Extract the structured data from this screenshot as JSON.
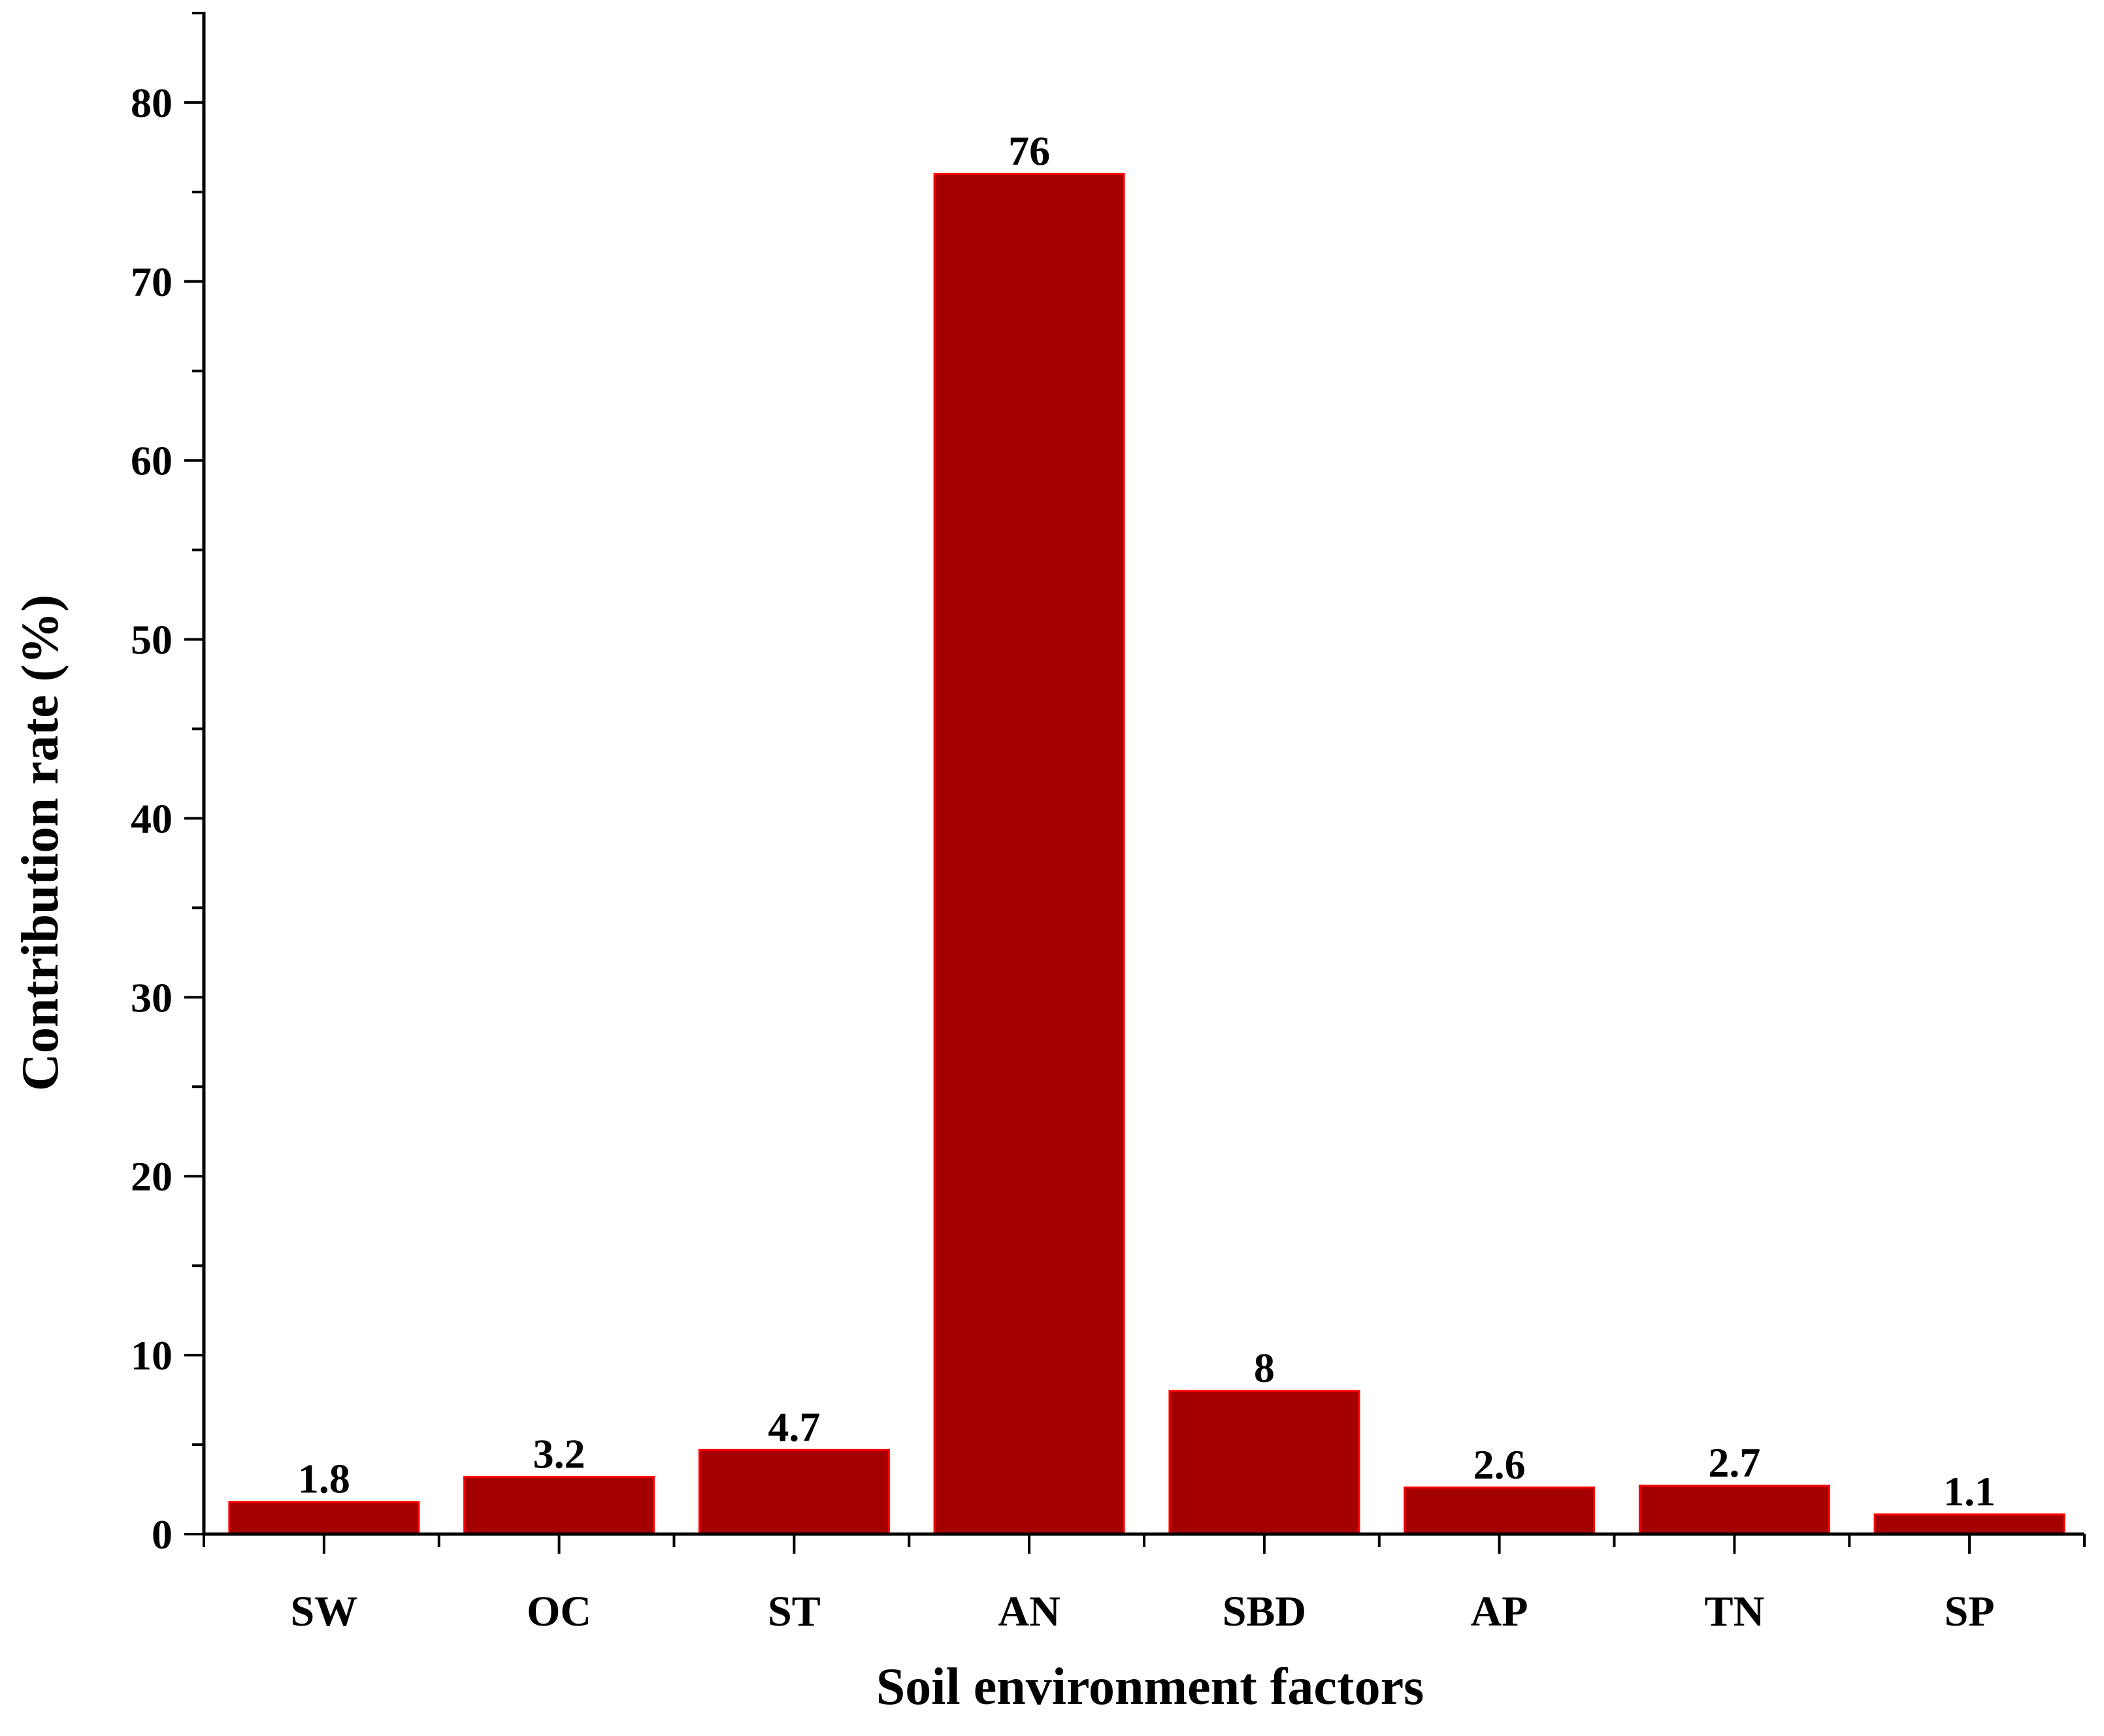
{
  "chart_data": {
    "type": "bar",
    "title": "",
    "xlabel": "Soil environment factors",
    "ylabel": "Contribution rate (%)",
    "categories": [
      "SW",
      "OC",
      "ST",
      "AN",
      "SBD",
      "AP",
      "TN",
      "SP"
    ],
    "values": [
      1.8,
      3.2,
      4.7,
      76,
      8,
      2.6,
      2.7,
      1.1
    ],
    "value_labels": [
      "1.8",
      "3.2",
      "4.7",
      "76",
      "8",
      "2.6",
      "2.7",
      "1.1"
    ],
    "ylim": [
      0,
      85
    ],
    "yticks": [
      0,
      10,
      20,
      30,
      40,
      50,
      60,
      70,
      80
    ],
    "ytick_labels": [
      "0",
      "10",
      "20",
      "30",
      "40",
      "50",
      "60",
      "70",
      "80"
    ],
    "grid": false,
    "legend": "none",
    "bar_color": "#A50000",
    "bar_edge_color": "#FF0000",
    "axis_color": "#000000"
  }
}
